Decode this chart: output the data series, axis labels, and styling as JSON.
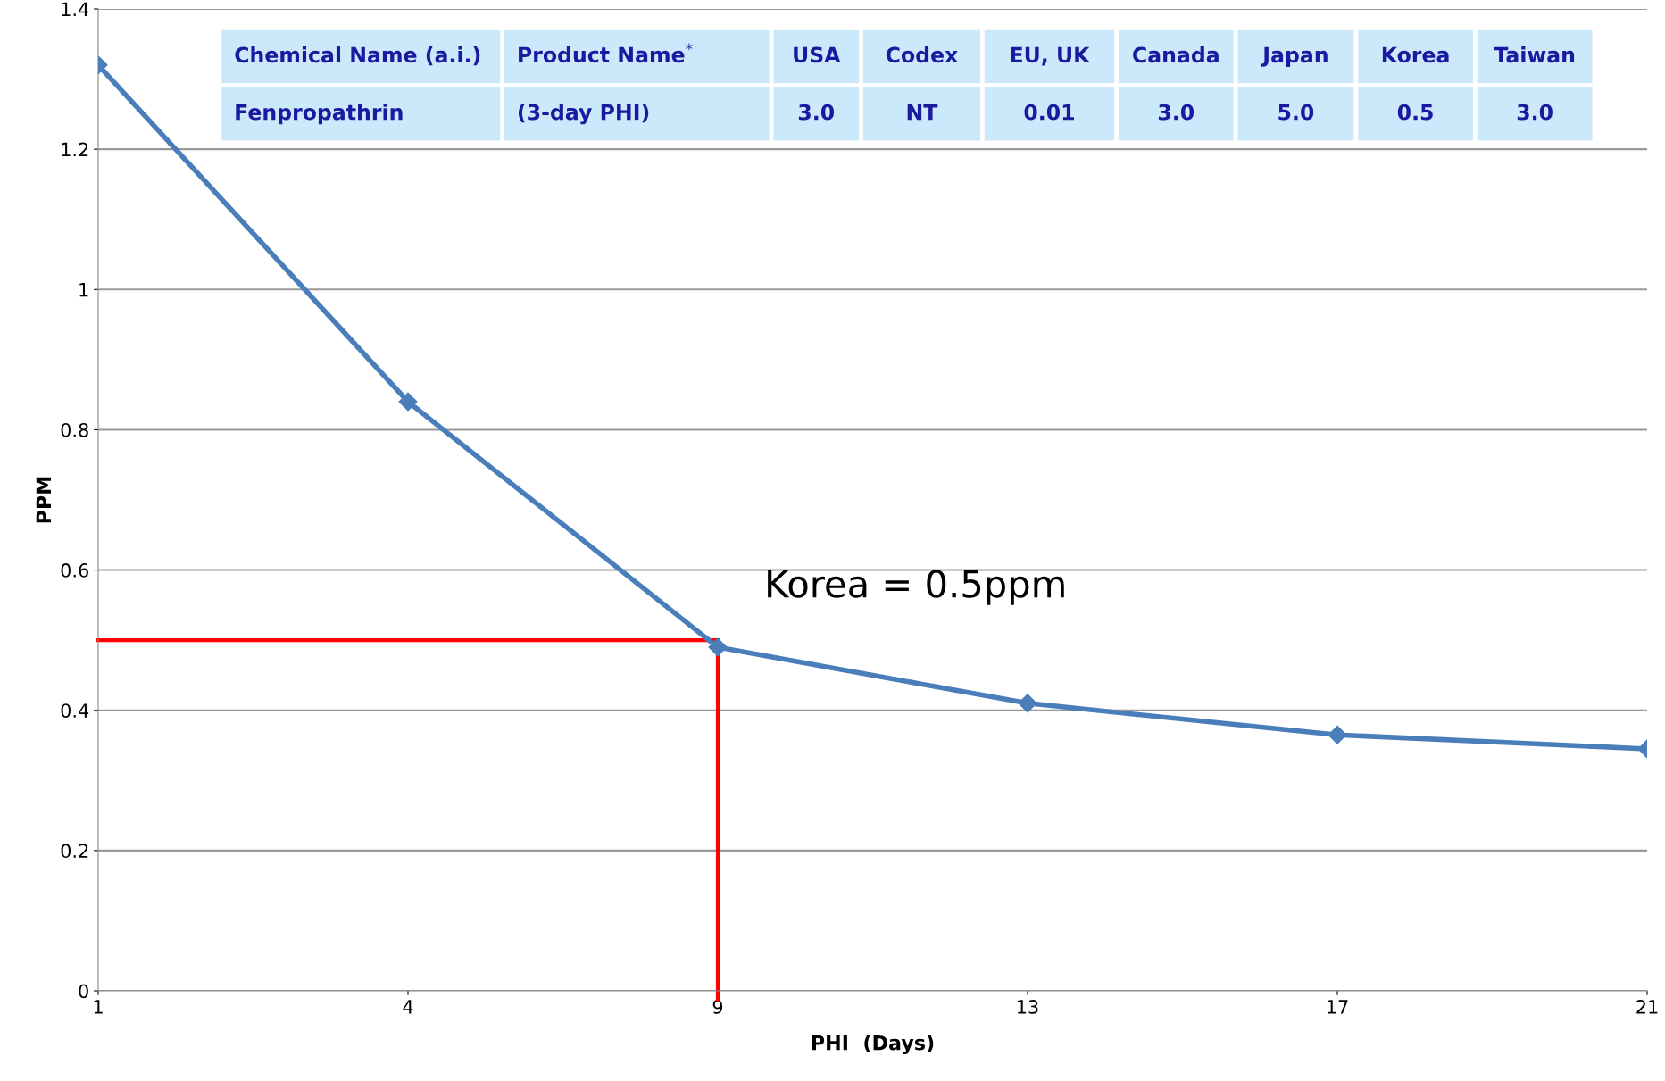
{
  "chart_data": {
    "type": "line",
    "xlabel": "PHI  (Days)",
    "ylabel": "PPM",
    "categories": [
      "1",
      "4",
      "9",
      "13",
      "17",
      "21"
    ],
    "series": [
      {
        "color": "#4a7ebb",
        "values": [
          1.32,
          0.84,
          0.49,
          0.41,
          0.365,
          0.345
        ]
      }
    ],
    "ylim": [
      0,
      1.4
    ],
    "yticks": [
      0,
      0.2,
      0.4,
      0.6,
      0.8,
      1,
      1.2,
      1.4
    ],
    "grid": "y",
    "marker": "diamond",
    "line_style": "solid",
    "ref_lines": [
      {
        "axis": "y",
        "value": 0.5,
        "color": "#ff0000",
        "label": "Korea = 0.5ppm"
      },
      {
        "axis": "x",
        "value": "9",
        "color": "#ff0000"
      }
    ],
    "annotations": [
      "Chemical Name (a.i.)",
      "Product Name$^{*}$",
      "USA",
      "Codex",
      "EU, UK",
      "Canada",
      "Japan",
      "Korea",
      "Taiwan",
      "Fenpropathrin",
      "(3-day PHI)",
      "3.0",
      "NT",
      "0.01",
      "3.0",
      "5.0",
      "0.5",
      "3.0"
    ]
  }
}
